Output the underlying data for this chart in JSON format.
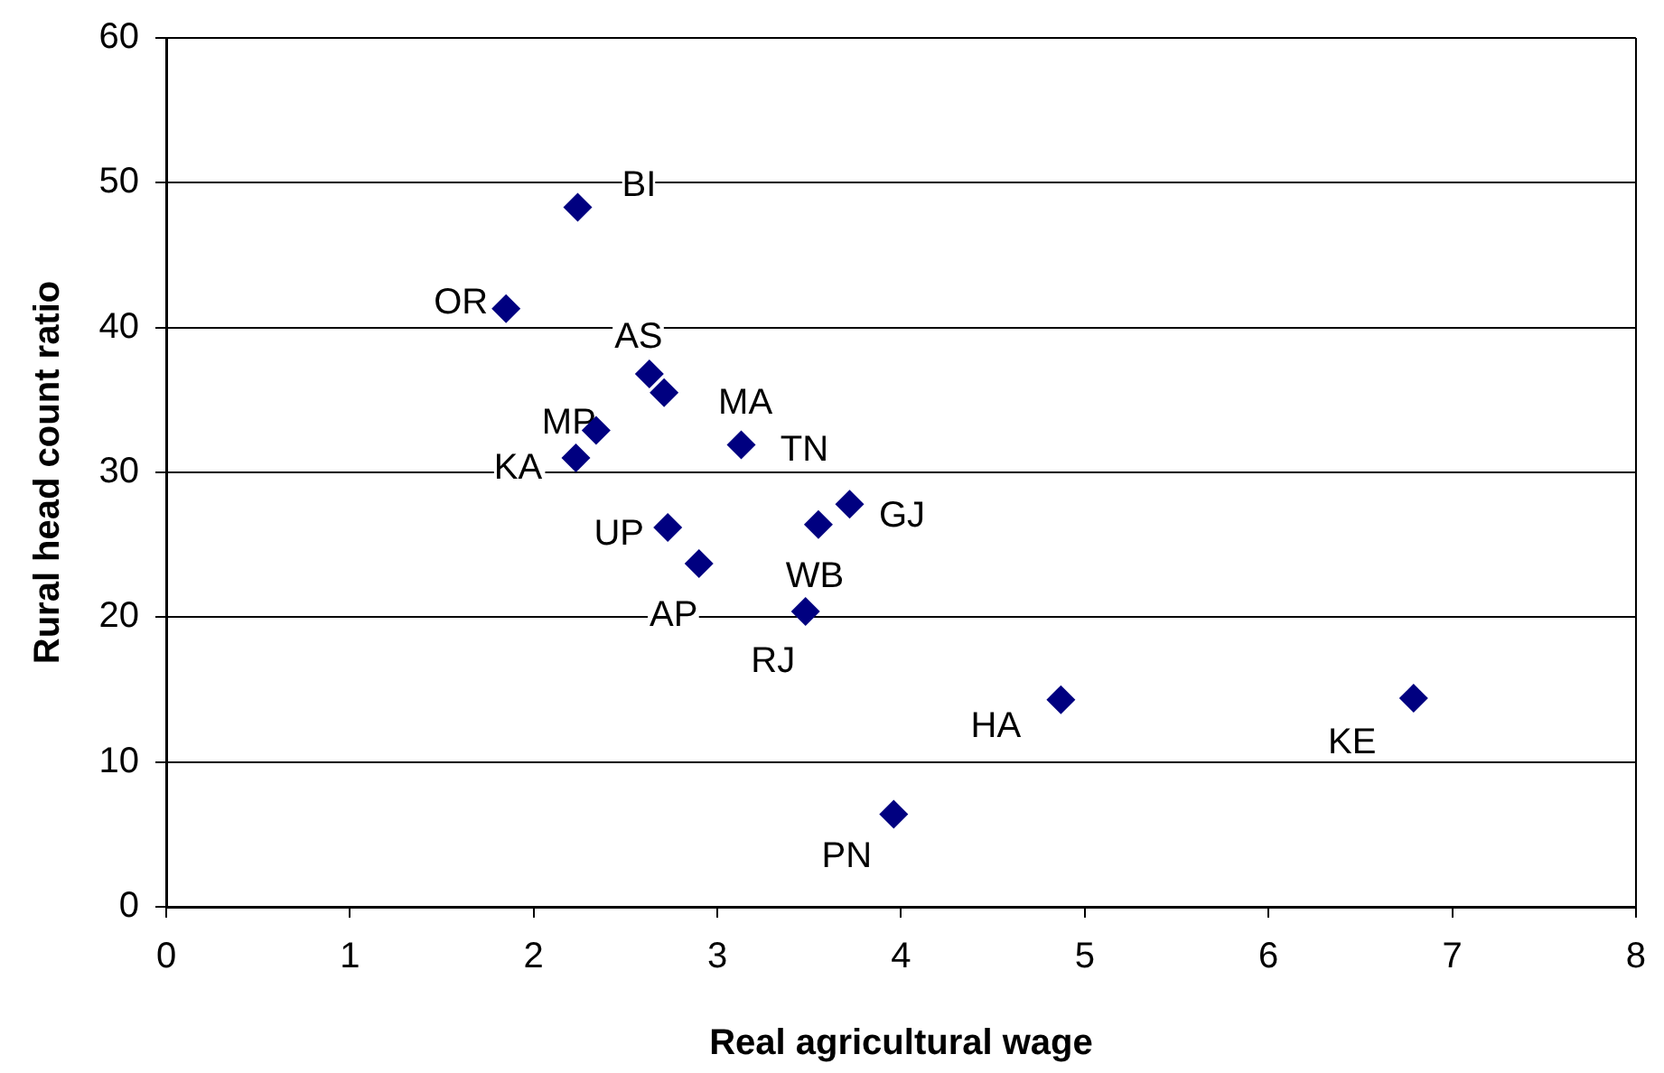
{
  "chart_data": {
    "type": "scatter",
    "xlabel": "Real agricultural wage",
    "ylabel": "Rural head count ratio",
    "x": [
      2.24,
      1.85,
      2.63,
      2.71,
      2.34,
      2.23,
      3.13,
      2.73,
      3.72,
      3.55,
      2.9,
      3.48,
      4.87,
      6.79,
      3.96
    ],
    "values": [
      48.3,
      41.3,
      36.8,
      35.5,
      32.9,
      31.0,
      31.9,
      26.2,
      27.8,
      26.4,
      23.7,
      20.4,
      14.3,
      14.4,
      6.4
    ],
    "color": "#000080",
    "marker": "diamond",
    "xlim": [
      0,
      8
    ],
    "ylim": [
      0,
      60
    ],
    "xticks": [
      0,
      1,
      2,
      3,
      4,
      5,
      6,
      7,
      8
    ],
    "yticks": [
      0,
      10,
      20,
      30,
      40,
      50,
      60
    ],
    "grid": "y",
    "legend": false,
    "annotations": [
      {
        "text": "BI",
        "x": 2.24,
        "y": 48.3
      },
      {
        "text": "OR",
        "x": 1.85,
        "y": 41.3
      },
      {
        "text": "AS",
        "x": 2.63,
        "y": 36.8
      },
      {
        "text": "MA",
        "x": 2.71,
        "y": 35.5
      },
      {
        "text": "MP",
        "x": 2.34,
        "y": 32.9
      },
      {
        "text": "KA",
        "x": 2.23,
        "y": 31.0
      },
      {
        "text": "TN",
        "x": 3.13,
        "y": 31.9
      },
      {
        "text": "UP",
        "x": 2.73,
        "y": 26.2
      },
      {
        "text": "GJ",
        "x": 3.72,
        "y": 27.8
      },
      {
        "text": "WB",
        "x": 3.55,
        "y": 26.4
      },
      {
        "text": "AP",
        "x": 2.9,
        "y": 23.7
      },
      {
        "text": "RJ",
        "x": 3.48,
        "y": 20.4
      },
      {
        "text": "HA",
        "x": 4.87,
        "y": 14.3
      },
      {
        "text": "KE",
        "x": 6.79,
        "y": 14.4
      },
      {
        "text": "PN",
        "x": 3.96,
        "y": 6.4
      }
    ]
  }
}
